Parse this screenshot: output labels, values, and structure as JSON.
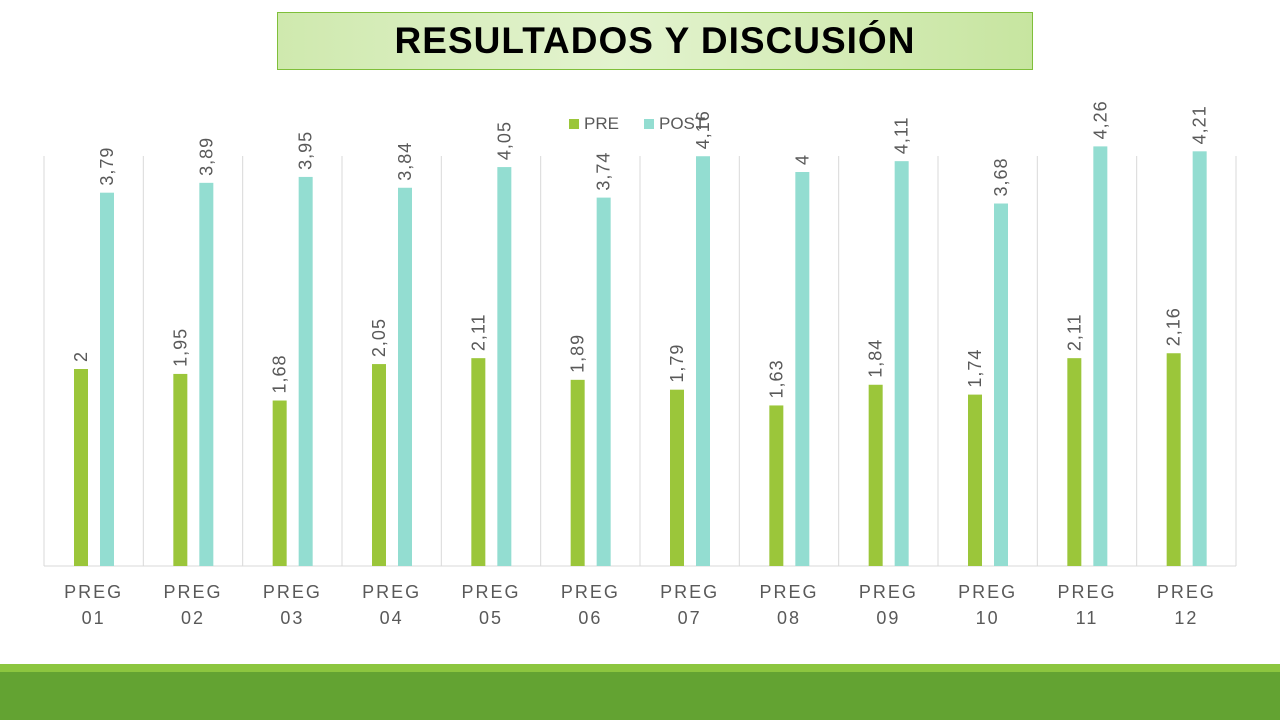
{
  "slide": {
    "title": "RESULTADOS Y DISCUSIÓN"
  },
  "colors": {
    "pre": "#9bc63a",
    "post": "#93ddd1",
    "footer_light": "#8cc63f",
    "footer_dark": "#63a332",
    "grid": "#d9d9d9",
    "label": "#595959"
  },
  "chart_data": {
    "type": "bar",
    "legend_position": "top",
    "grid": "vertical separators",
    "categories": [
      [
        "PREG",
        "01"
      ],
      [
        "PREG",
        "02"
      ],
      [
        "PREG",
        "03"
      ],
      [
        "PREG",
        "04"
      ],
      [
        "PREG",
        "05"
      ],
      [
        "PREG",
        "06"
      ],
      [
        "PREG",
        "07"
      ],
      [
        "PREG",
        "08"
      ],
      [
        "PREG",
        "09"
      ],
      [
        "PREG",
        "10"
      ],
      [
        "PREG",
        "11"
      ],
      [
        "PREG",
        "12"
      ]
    ],
    "series": [
      {
        "name": "PRE",
        "values": [
          2,
          1.95,
          1.68,
          2.05,
          2.11,
          1.89,
          1.79,
          1.63,
          1.84,
          1.74,
          2.11,
          2.16
        ],
        "labels": [
          "2",
          "1,95",
          "1,68",
          "2,05",
          "2,11",
          "1,89",
          "1,79",
          "1,63",
          "1,84",
          "1,74",
          "2,11",
          "2,16"
        ]
      },
      {
        "name": "POST",
        "values": [
          3.79,
          3.89,
          3.95,
          3.84,
          4.05,
          3.74,
          4.16,
          4,
          4.11,
          3.68,
          4.26,
          4.21
        ],
        "labels": [
          "3,79",
          "3,89",
          "3,95",
          "3,84",
          "4,05",
          "3,74",
          "4,16",
          "4",
          "4,11",
          "3,68",
          "4,26",
          "4,21"
        ]
      }
    ],
    "ylim": [
      0,
      4.2
    ]
  }
}
